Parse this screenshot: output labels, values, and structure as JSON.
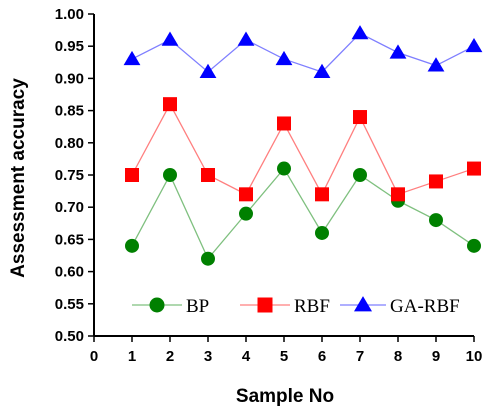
{
  "chart_data": {
    "type": "line",
    "title": "",
    "xlabel": "Sample No",
    "ylabel": "Assessment accuracy",
    "xlim": [
      0,
      10
    ],
    "ylim": [
      0.5,
      1.0
    ],
    "x_ticks": [
      "0",
      "1",
      "2",
      "3",
      "4",
      "5",
      "6",
      "7",
      "8",
      "9",
      "10"
    ],
    "y_ticks": [
      "0.50",
      "0.55",
      "0.60",
      "0.65",
      "0.70",
      "0.75",
      "0.80",
      "0.85",
      "0.90",
      "0.95",
      "1.00"
    ],
    "grid": false,
    "legend_placement": "bottom",
    "x": [
      1,
      2,
      3,
      4,
      5,
      6,
      7,
      8,
      9,
      10
    ],
    "series": [
      {
        "name": "BP",
        "marker": "circle",
        "marker_color": "#008000",
        "line_color": "#7fc07f",
        "values": [
          0.64,
          0.75,
          0.62,
          0.69,
          0.76,
          0.66,
          0.75,
          0.71,
          0.68,
          0.64
        ]
      },
      {
        "name": "RBF",
        "marker": "square",
        "marker_color": "#ff0000",
        "line_color": "#ff7f7f",
        "values": [
          0.75,
          0.86,
          0.75,
          0.72,
          0.83,
          0.72,
          0.84,
          0.72,
          0.74,
          0.76
        ]
      },
      {
        "name": "GA-RBF",
        "marker": "triangle",
        "marker_color": "#0000ff",
        "line_color": "#7f7fff",
        "values": [
          0.93,
          0.96,
          0.91,
          0.96,
          0.93,
          0.91,
          0.97,
          0.94,
          0.92,
          0.95
        ]
      }
    ]
  }
}
